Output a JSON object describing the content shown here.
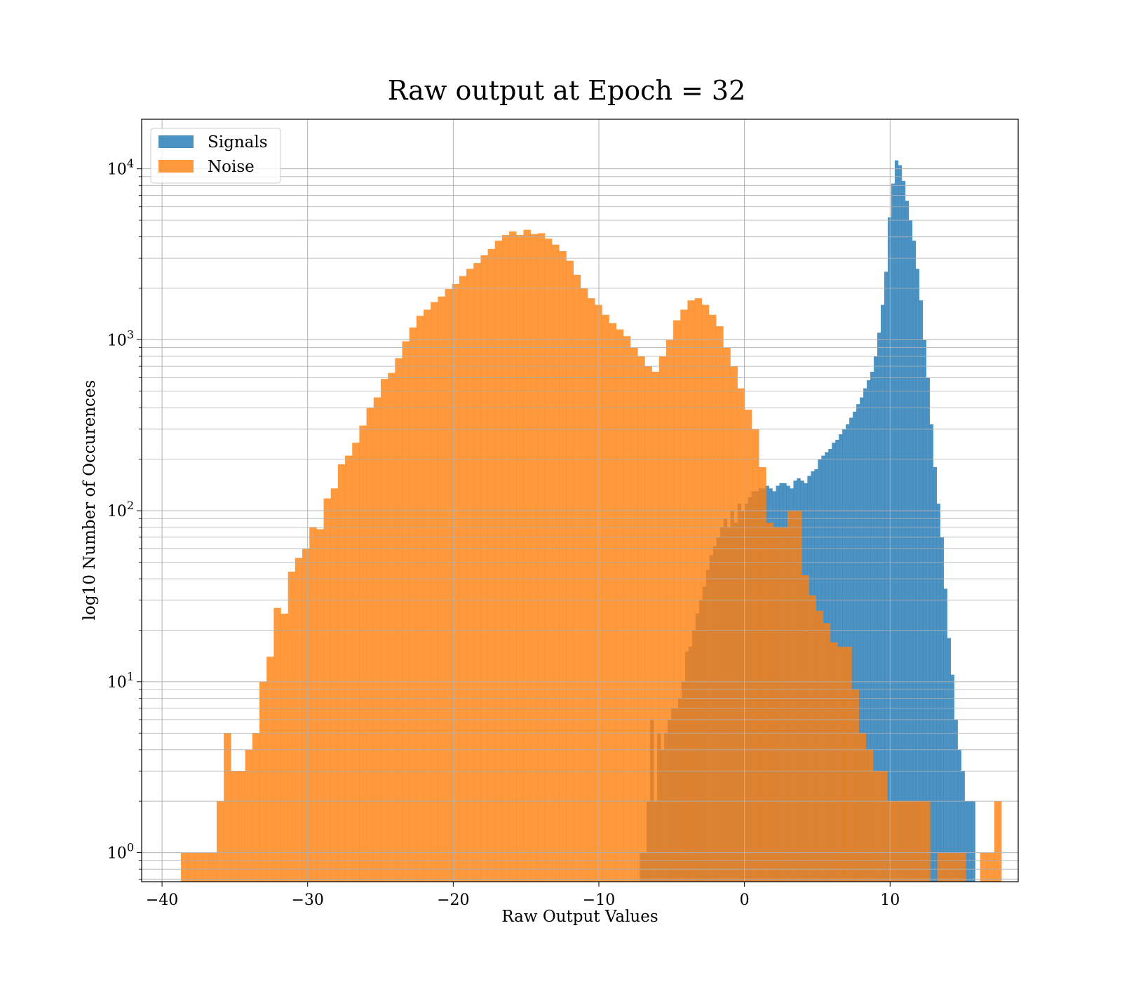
{
  "chart_data": {
    "type": "bar",
    "title": "Raw output at Epoch = 32",
    "xlabel": "Raw Output Values",
    "ylabel": "log10 Number of Occurences",
    "xlim": [
      -41.4,
      18.8
    ],
    "ylim_log10": [
      -0.17,
      4.29
    ],
    "y_scale": "log",
    "grid": true,
    "legend_position": "upper-left",
    "x_ticks": [
      -40,
      -30,
      -20,
      -10,
      0,
      10
    ],
    "x_tick_labels": [
      "−40",
      "−30",
      "−20",
      "−10",
      "0",
      "10"
    ],
    "y_ticks": [
      {
        "base": "10",
        "exp": "0",
        "value": 1
      },
      {
        "base": "10",
        "exp": "1",
        "value": 10
      },
      {
        "base": "10",
        "exp": "2",
        "value": 100
      },
      {
        "base": "10",
        "exp": "3",
        "value": 1000
      },
      {
        "base": "10",
        "exp": "4",
        "value": 10000
      }
    ],
    "series": [
      {
        "name": "Signals",
        "color": "#1f77b4",
        "bin_start": -7.2,
        "bin_width": 0.24,
        "counts": [
          1,
          1,
          2,
          6,
          2,
          5,
          4,
          5,
          6,
          7,
          7,
          8,
          10,
          15,
          16,
          20,
          25,
          30,
          36,
          45,
          55,
          62,
          70,
          80,
          90,
          80,
          100,
          85,
          110,
          100,
          110,
          120,
          130,
          130,
          135,
          135,
          140,
          135,
          130,
          140,
          145,
          145,
          140,
          135,
          150,
          155,
          150,
          145,
          160,
          170,
          175,
          200,
          210,
          220,
          230,
          250,
          260,
          280,
          300,
          320,
          350,
          380,
          420,
          460,
          520,
          580,
          650,
          800,
          1100,
          1600,
          2500,
          5200,
          8200,
          11200,
          10500,
          8500,
          6500,
          5000,
          3800,
          2600,
          1700,
          1000,
          600,
          320,
          180,
          110,
          70,
          35,
          18,
          11,
          6,
          4,
          3,
          2,
          2,
          2
        ],
        "zero_bins_note": ""
      },
      {
        "name": "Noise",
        "color": "#ff7f0e",
        "bin_start": -38.7,
        "bin_width": 0.49,
        "counts": [
          1,
          1,
          1,
          1,
          1,
          2,
          5,
          3,
          3,
          4,
          5,
          10,
          14,
          27,
          25,
          44,
          53,
          60,
          80,
          78,
          118,
          135,
          187,
          210,
          250,
          315,
          400,
          460,
          590,
          640,
          780,
          980,
          1180,
          1380,
          1500,
          1660,
          1790,
          1980,
          2120,
          2360,
          2600,
          2810,
          3120,
          3400,
          3800,
          4100,
          4300,
          4100,
          4400,
          4150,
          4200,
          3900,
          3600,
          3300,
          2900,
          2400,
          2000,
          1750,
          1600,
          1400,
          1250,
          1150,
          1050,
          900,
          800,
          700,
          650,
          800,
          1000,
          1300,
          1500,
          1700,
          1750,
          1600,
          1400,
          1200,
          900,
          700,
          520,
          390,
          300,
          180,
          85,
          80,
          80,
          100,
          100,
          42,
          32,
          26,
          22,
          17,
          16,
          16,
          9,
          5,
          4,
          3,
          3,
          2,
          2,
          2,
          2,
          2,
          2,
          0,
          1,
          1,
          1,
          1,
          0,
          0,
          1,
          1,
          2
        ],
        "zero_bins_note": ""
      }
    ],
    "legend": [
      {
        "label": "Signals",
        "color": "#1f77b4"
      },
      {
        "label": "Noise",
        "color": "#ff7f0e"
      }
    ]
  }
}
